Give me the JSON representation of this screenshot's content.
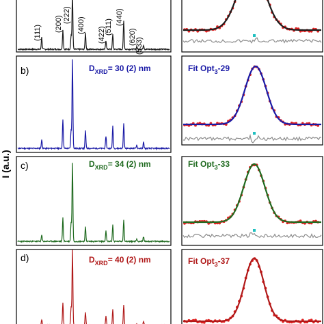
{
  "colors": {
    "a": "#1c1c1c",
    "b": "#1a1aa6",
    "c": "#1f6a1f",
    "d": "#b01818",
    "fit_data": "#e02020",
    "residual": "#8c8c8c",
    "marker": "#20c0c0"
  },
  "y_axis_label": "I (a.u.)",
  "chart_data": [
    {
      "type": "line",
      "panel": "a",
      "label": "",
      "annotation": "",
      "peaks": [
        {
          "hkl": "(111)",
          "intensity": 0.22
        },
        {
          "hkl": "(200)",
          "intensity": 0.35
        },
        {
          "hkl": "(222)",
          "intensity": 1.0
        },
        {
          "hkl": "(400)",
          "intensity": 0.3
        },
        {
          "hkl": "(422)",
          "intensity": 0.16
        },
        {
          "hkl": "(511)",
          "intensity": 0.28
        },
        {
          "hkl": "(440)",
          "intensity": 0.52
        },
        {
          "hkl": "(620)",
          "intensity": 0.05
        },
        {
          "hkl": "(533)",
          "intensity": 0.08
        }
      ]
    },
    {
      "type": "line",
      "panel": "b",
      "label": "b)",
      "annotation": {
        "prefix": "D",
        "sub": "XRD",
        "suffix": "= 30 (2) nm"
      },
      "peaks": [
        0.1,
        0.33,
        0.2,
        1.0,
        0.2,
        0.14,
        0.25,
        0.28,
        0.04,
        0.07
      ]
    },
    {
      "type": "line",
      "panel": "c",
      "label": "c)",
      "annotation": {
        "prefix": "D",
        "sub": "XRD",
        "suffix": "= 34 (2) nm"
      },
      "peaks": [
        0.08,
        0.3,
        0.24,
        1.0,
        0.18,
        0.13,
        0.21,
        0.28,
        0.03,
        0.06
      ]
    },
    {
      "type": "line",
      "panel": "d",
      "label": "d)",
      "annotation": {
        "prefix": "D",
        "sub": "XRD",
        "suffix": "= 40 (2) nm"
      },
      "peaks": [
        0.08,
        0.3,
        0.24,
        1.0,
        0.18,
        0.13,
        0.21,
        0.28,
        0.03,
        0.06
      ]
    },
    {
      "type": "scatter",
      "panel": "fit-a",
      "title": {
        "prefix": "",
        "sub": "",
        "suffix": ""
      },
      "peak_height": 1.0
    },
    {
      "type": "scatter",
      "panel": "fit-b",
      "title": {
        "prefix": "Fit Opt",
        "sub": "3",
        "suffix": "-29"
      },
      "peak_height": 1.0
    },
    {
      "type": "scatter",
      "panel": "fit-c",
      "title": {
        "prefix": "Fit Opt",
        "sub": "3",
        "suffix": "-33"
      },
      "peak_height": 1.0
    },
    {
      "type": "scatter",
      "panel": "fit-d",
      "title": {
        "prefix": "Fit Opt",
        "sub": "3",
        "suffix": "-37"
      },
      "peak_height": 1.0
    }
  ]
}
